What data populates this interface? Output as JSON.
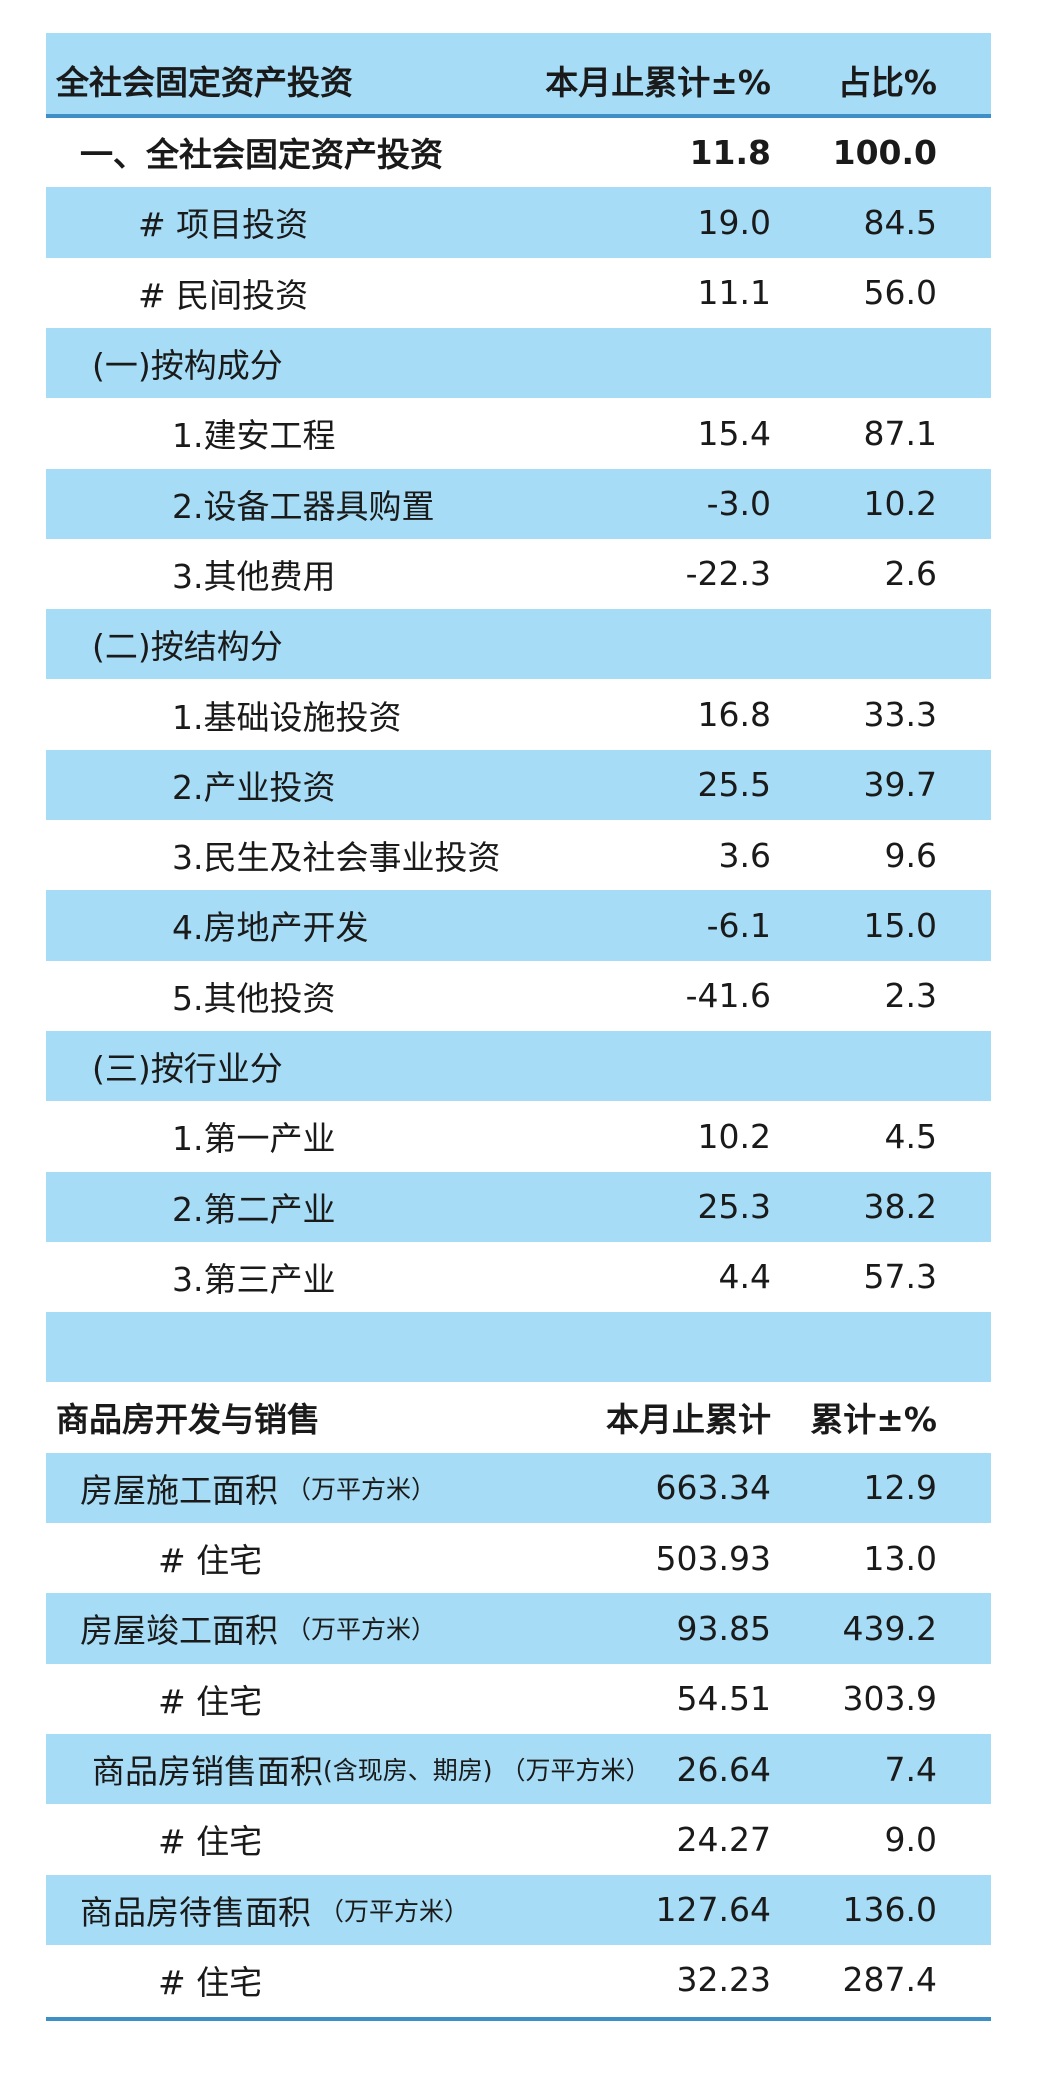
{
  "table1": {
    "header": [
      "全社会固定资产投资",
      "本月止累计±%",
      "占比%"
    ],
    "rows": [
      {
        "label": "一、全社会固定资产投资",
        "values": [
          "11.8",
          "100.0"
        ]
      },
      {
        "label": "# 项目投资",
        "values": [
          "19.0",
          "84.5"
        ]
      },
      {
        "label": "# 民间投资",
        "values": [
          "11.1",
          "56.0"
        ]
      },
      {
        "label": "(一)按构成分"
      },
      {
        "label": "1.建安工程",
        "values": [
          "15.4",
          "87.1"
        ]
      },
      {
        "label": "2.设备工器具购置",
        "values": [
          "-3.0",
          "10.2"
        ]
      },
      {
        "label": "3.其他费用",
        "values": [
          "-22.3",
          "2.6"
        ]
      },
      {
        "label": "(二)按结构分"
      },
      {
        "label": "1.基础设施投资",
        "values": [
          "16.8",
          "33.3"
        ]
      },
      {
        "label": "2.产业投资",
        "values": [
          "25.5",
          "39.7"
        ]
      },
      {
        "label": "3.民生及社会事业投资",
        "values": [
          "3.6",
          "9.6"
        ]
      },
      {
        "label": "4.房地产开发",
        "values": [
          "-6.1",
          "15.0"
        ]
      },
      {
        "label": "5.其他投资",
        "values": [
          "-41.6",
          "2.3"
        ]
      },
      {
        "label": "(三)按行业分"
      },
      {
        "label": "1.第一产业",
        "values": [
          "10.2",
          "4.5"
        ]
      },
      {
        "label": "2.第二产业",
        "values": [
          "25.3",
          "38.2"
        ]
      },
      {
        "label": "3.第三产业",
        "values": [
          "4.4",
          "57.3"
        ]
      }
    ]
  },
  "table2": {
    "header": [
      "商品房开发与销售",
      "本月止累计",
      "累计±%"
    ],
    "rows": [
      {
        "label": "房屋施工面积",
        "unit": "（万平方米）",
        "values": [
          "663.34",
          "12.9"
        ]
      },
      {
        "label": "# 住宅",
        "values": [
          "503.93",
          "13.0"
        ]
      },
      {
        "label": "房屋竣工面积",
        "unit": "（万平方米）",
        "values": [
          "93.85",
          "439.2"
        ]
      },
      {
        "label": "# 住宅",
        "values": [
          "54.51",
          "303.9"
        ]
      },
      {
        "label": "商品房销售面积",
        "note": "(含现房、期房)",
        "unit": "（万平方米）",
        "values": [
          "26.64",
          "7.4"
        ]
      },
      {
        "label": "# 住宅",
        "values": [
          "24.27",
          "9.0"
        ]
      },
      {
        "label": "商品房待售面积",
        "unit": "（万平方米）",
        "values": [
          "127.64",
          "136.0"
        ]
      },
      {
        "label": "# 住宅",
        "values": [
          "32.23",
          "287.4"
        ]
      }
    ]
  }
}
